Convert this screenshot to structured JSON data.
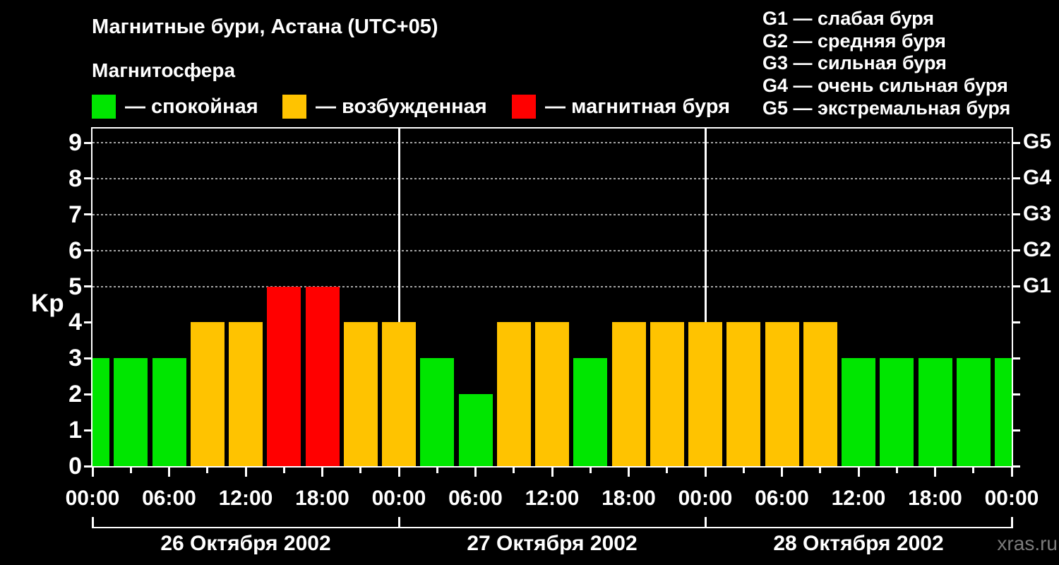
{
  "title": "Магнитные бури, Астана (UTC+05)",
  "subtitle": "Магнитосфера",
  "watermark": "xras.ru",
  "legend": {
    "items": [
      {
        "id": "quiet",
        "label": "— спокойная",
        "color": "#00e600"
      },
      {
        "id": "excited",
        "label": "— возбужденная",
        "color": "#ffc300"
      },
      {
        "id": "storm",
        "label": "— магнитная буря",
        "color": "#ff0000"
      }
    ]
  },
  "storm_scale": {
    "separator": "—",
    "items": [
      {
        "code": "G1",
        "label": "слабая буря"
      },
      {
        "code": "G2",
        "label": "средняя буря"
      },
      {
        "code": "G3",
        "label": "сильная буря"
      },
      {
        "code": "G4",
        "label": "очень сильная буря"
      },
      {
        "code": "G5",
        "label": "экстремальная буря"
      }
    ]
  },
  "chart_data": {
    "type": "bar",
    "title": "Магнитные бури, Астана (UTC+05)",
    "ylabel": "Kp",
    "ylim": [
      0,
      9.4
    ],
    "yticks": [
      0,
      1,
      2,
      3,
      4,
      5,
      6,
      7,
      8,
      9
    ],
    "grid_values": [
      5,
      6,
      7,
      8,
      9
    ],
    "right_axis_labels": [
      {
        "value": 5,
        "label": "G1"
      },
      {
        "value": 6,
        "label": "G2"
      },
      {
        "value": 7,
        "label": "G3"
      },
      {
        "value": 8,
        "label": "G4"
      },
      {
        "value": 9,
        "label": "G5"
      }
    ],
    "x_major_labels": [
      "00:00",
      "06:00",
      "12:00",
      "18:00",
      "00:00",
      "06:00",
      "12:00",
      "18:00",
      "00:00",
      "06:00",
      "12:00",
      "18:00",
      "00:00"
    ],
    "day_labels": [
      "26 Октября 2002",
      "27 Октября 2002",
      "28 Октября 2002"
    ],
    "bar_step_hours": 3,
    "values": [
      3,
      3,
      3,
      4,
      4,
      5,
      5,
      4,
      4,
      3,
      2,
      4,
      4,
      3,
      4,
      4,
      4,
      4,
      4,
      4,
      3,
      3,
      3,
      3,
      3
    ],
    "kp_by_day": [
      {
        "date": "26 Октября 2002",
        "kp": [
          3,
          3,
          3,
          4,
          4,
          5,
          5,
          4
        ]
      },
      {
        "date": "27 Октября 2002",
        "kp": [
          4,
          3,
          2,
          4,
          4,
          3,
          4,
          4
        ]
      },
      {
        "date": "28 Октября 2002",
        "kp": [
          4,
          4,
          4,
          4,
          3,
          3,
          3,
          3
        ]
      }
    ],
    "color_rules": {
      "quiet_max": 3,
      "excited_max": 4,
      "storm_min": 5
    },
    "colors": {
      "quiet": "#00e600",
      "excited": "#ffc300",
      "storm": "#ff0000"
    },
    "grid_color": "#a5a5a5",
    "axis_color": "#ffffff",
    "background": "#000000",
    "legend_position": "top"
  }
}
